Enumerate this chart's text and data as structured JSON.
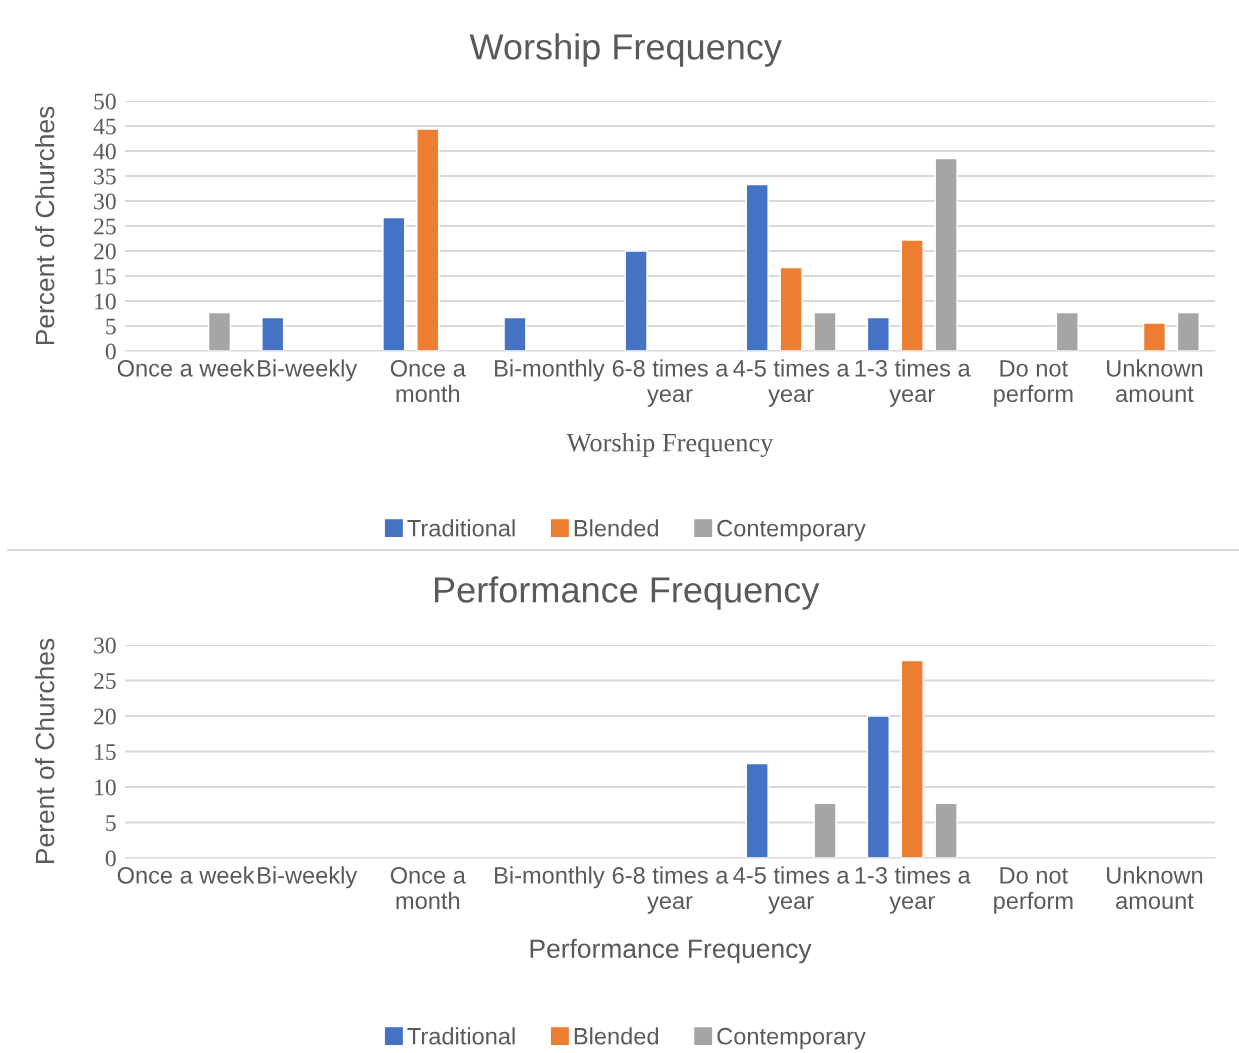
{
  "chart_data": [
    {
      "type": "bar",
      "title": "Worship Frequency",
      "xlabel": "Worship Frequency",
      "ylabel": "Percent of Churches",
      "categories": [
        "Once a week",
        "Bi-weekly",
        "Once a month",
        "Bi-monthly",
        "6-8 times a year",
        "4-5 times a year",
        "1-3 times a year",
        "Do not perform",
        "Unknown amount"
      ],
      "series": [
        {
          "name": "Traditional",
          "color": "#4472c4",
          "values": [
            null,
            6.7,
            26.7,
            6.7,
            20,
            33.3,
            6.7,
            null,
            null
          ]
        },
        {
          "name": "Blended",
          "color": "#ed7d31",
          "values": [
            null,
            null,
            44.4,
            null,
            null,
            16.7,
            22.2,
            null,
            5.6
          ]
        },
        {
          "name": "Contemporary",
          "color": "#a5a5a5",
          "values": [
            7.7,
            null,
            null,
            null,
            null,
            7.7,
            38.5,
            7.7,
            7.7
          ]
        }
      ],
      "ylim": [
        0,
        50
      ],
      "yticks": [
        0,
        5,
        10,
        15,
        20,
        25,
        30,
        35,
        40,
        45,
        50
      ],
      "grid": "y",
      "legend": "bottom"
    },
    {
      "type": "bar",
      "title": "Performance Frequency",
      "xlabel": "Performance Frequency",
      "ylabel": "Perent of Churches",
      "categories": [
        "Once a week",
        "Bi-weekly",
        "Once a month",
        "Bi-monthly",
        "6-8 times a year",
        "4-5 times a year",
        "1-3 times a year",
        "Do not perform",
        "Unknown amount"
      ],
      "series": [
        {
          "name": "Traditional",
          "color": "#4472c4",
          "values": [
            null,
            null,
            null,
            null,
            null,
            13.3,
            20,
            null,
            null
          ]
        },
        {
          "name": "Blended",
          "color": "#ed7d31",
          "values": [
            null,
            null,
            null,
            null,
            null,
            null,
            27.8,
            null,
            null
          ]
        },
        {
          "name": "Contemporary",
          "color": "#a5a5a5",
          "values": [
            null,
            null,
            null,
            null,
            null,
            7.7,
            7.7,
            null,
            null
          ]
        }
      ],
      "ylim": [
        0,
        30
      ],
      "yticks": [
        0,
        5,
        10,
        15,
        20,
        25,
        30
      ],
      "grid": "y",
      "legend": "bottom"
    }
  ]
}
